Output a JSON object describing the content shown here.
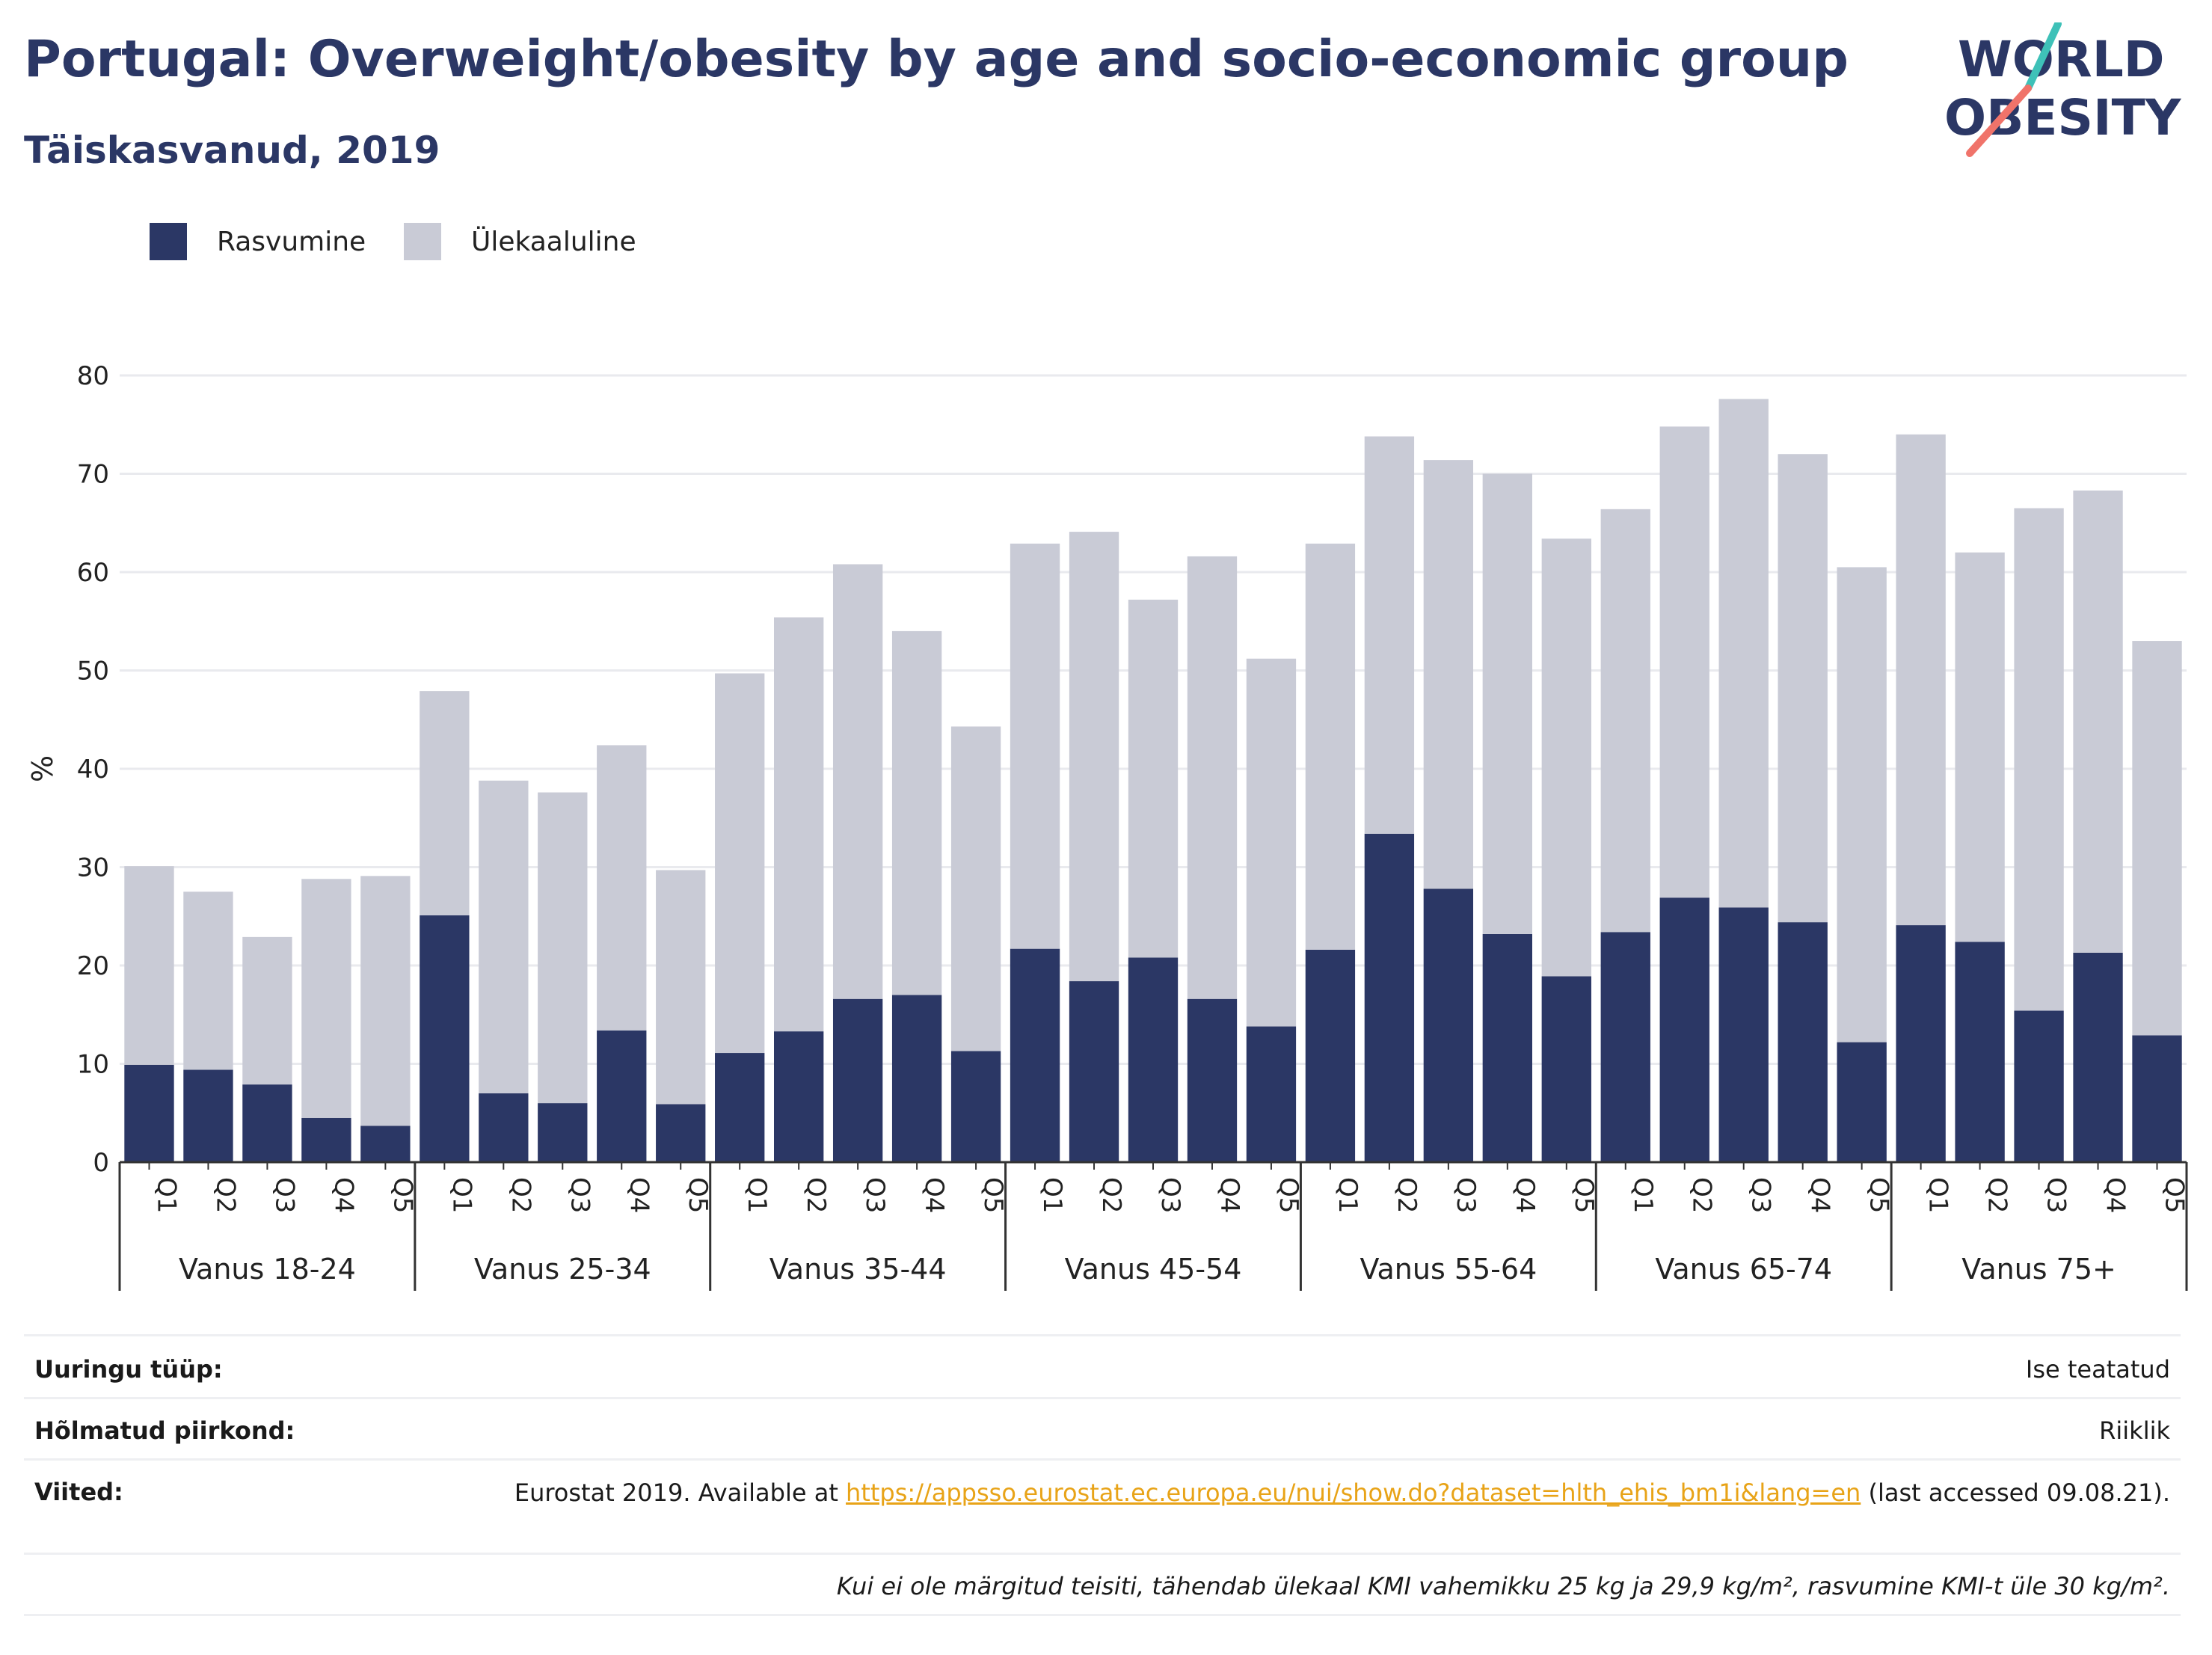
{
  "header": {
    "title": "Portugal: Overweight/obesity by age and socio-economic group",
    "subtitle": "Täiskasvanud, 2019"
  },
  "logo": {
    "line1": "WORLD",
    "line2": "OBESITY",
    "navy": "#2b3765",
    "teal": "#3ec1b8",
    "coral": "#f0736a"
  },
  "legend": {
    "items": [
      {
        "label": "Rasvumine",
        "color": "#2b3765"
      },
      {
        "label": "Ülekaaluline",
        "color": "#c9cbd6"
      }
    ]
  },
  "chart_data": {
    "type": "bar",
    "stacked": true,
    "ylabel": "%",
    "ylim": [
      0,
      80
    ],
    "yticks": [
      0,
      10,
      20,
      30,
      40,
      50,
      60,
      70,
      80
    ],
    "grid": true,
    "legend_position": "top-left",
    "quintiles": [
      "Q1",
      "Q2",
      "Q3",
      "Q4",
      "Q5"
    ],
    "groups": [
      "Vanus 18-24",
      "Vanus 25-34",
      "Vanus 35-44",
      "Vanus 45-54",
      "Vanus 55-64",
      "Vanus 65-74",
      "Vanus 75+"
    ],
    "series": [
      {
        "name": "Rasvumine",
        "color": "#2b3765",
        "values": [
          9.9,
          9.4,
          7.9,
          4.5,
          3.7,
          25.1,
          7.0,
          6.0,
          13.4,
          5.9,
          11.1,
          13.3,
          16.6,
          17.0,
          11.3,
          21.7,
          18.4,
          20.8,
          16.6,
          13.8,
          21.6,
          33.4,
          27.8,
          23.2,
          18.9,
          23.4,
          26.9,
          25.9,
          24.4,
          12.2,
          24.1,
          22.4,
          15.4,
          21.3,
          12.9
        ]
      },
      {
        "name": "Ülekaaluline",
        "color": "#c9cbd6",
        "values": [
          20.2,
          18.1,
          15.0,
          24.3,
          25.4,
          22.8,
          31.8,
          31.6,
          29.0,
          23.8,
          38.6,
          42.1,
          44.2,
          37.0,
          33.0,
          41.2,
          45.7,
          36.4,
          45.0,
          37.4,
          41.3,
          40.4,
          43.6,
          46.8,
          44.5,
          43.0,
          47.9,
          51.7,
          47.6,
          48.3,
          49.9,
          39.6,
          51.1,
          47.0,
          40.1
        ]
      }
    ]
  },
  "meta": {
    "survey_label": "Uuringu tüüp:",
    "survey_value": "Ise teatatud",
    "coverage_label": "Hõlmatud piirkond:",
    "coverage_value": "Riiklik",
    "refs_label": "Viited:",
    "ref_prefix": "Eurostat 2019. Available at ",
    "ref_link": "https://appsso.eurostat.ec.europa.eu/nui/show.do?dataset=hlth_ehis_bm1i&lang=en",
    "ref_suffix": " (last accessed 09.08.21).",
    "footnote": "Kui ei ole märgitud teisiti, tähendab ülekaal KMI vahemikku 25 kg ja 29,9 kg/m², rasvumine KMI-t üle 30 kg/m²."
  }
}
